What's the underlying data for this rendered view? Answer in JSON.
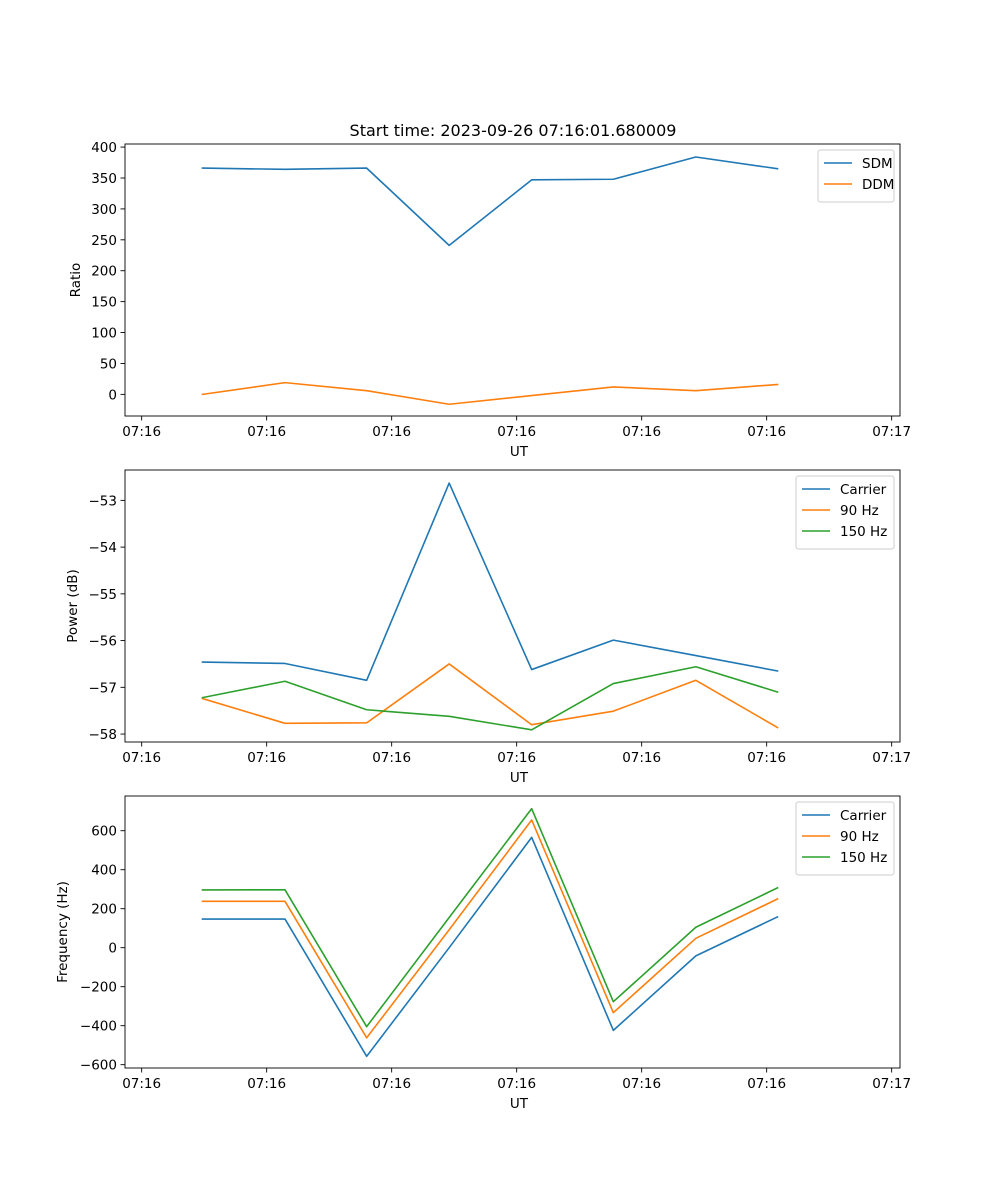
{
  "figure_title": "Start time: 2023-09-26 07:16:01.680009",
  "colors": {
    "blue": "#1f77b4",
    "orange": "#ff7f0e",
    "green": "#2ca02c",
    "axis": "#000000",
    "legend_border": "#cccccc"
  },
  "chart_data": [
    {
      "type": "line",
      "title": "Start time: 2023-09-26 07:16:01.680009",
      "xlabel": "UT",
      "ylabel": "Ratio",
      "xlim": [
        0,
        9.3
      ],
      "x_ticks": [
        0.2,
        1.7,
        3.2,
        4.7,
        6.2,
        7.7,
        9.2
      ],
      "x_tick_labels": [
        "07:16",
        "07:16",
        "07:16",
        "07:16",
        "07:16",
        "07:16",
        "07:17"
      ],
      "ylim": [
        -35,
        405
      ],
      "y_ticks": [
        0,
        50,
        100,
        150,
        200,
        250,
        300,
        350,
        400
      ],
      "y_tick_labels": [
        "0",
        "50",
        "100",
        "150",
        "200",
        "250",
        "300",
        "350",
        "400"
      ],
      "x": [
        0.93,
        1.92,
        2.9,
        3.89,
        4.88,
        5.86,
        6.85,
        7.83
      ],
      "series": [
        {
          "name": "SDM",
          "color": "#1f77b4",
          "values": [
            366,
            364,
            366,
            241,
            347,
            348,
            384,
            365
          ]
        },
        {
          "name": "DDM",
          "color": "#ff7f0e",
          "values": [
            0,
            19,
            6,
            -16,
            -2,
            12,
            6,
            16
          ]
        }
      ],
      "legend": "upper right",
      "legend_width": 76
    },
    {
      "type": "line",
      "title": "",
      "xlabel": "UT",
      "ylabel": "Power (dB)",
      "xlim": [
        0,
        9.3
      ],
      "x_ticks": [
        0.2,
        1.7,
        3.2,
        4.7,
        6.2,
        7.7,
        9.2
      ],
      "x_tick_labels": [
        "07:16",
        "07:16",
        "07:16",
        "07:16",
        "07:16",
        "07:16",
        "07:17"
      ],
      "ylim": [
        -58.17,
        -52.35
      ],
      "y_ticks": [
        -58,
        -57,
        -56,
        -55,
        -54,
        -53
      ],
      "y_tick_labels": [
        "−58",
        "−57",
        "−56",
        "−55",
        "−54",
        "−53"
      ],
      "x": [
        0.93,
        1.92,
        2.9,
        3.89,
        4.88,
        5.86,
        6.85,
        7.83
      ],
      "series": [
        {
          "name": "Carrier",
          "color": "#1f77b4",
          "values": [
            -56.46,
            -56.49,
            -56.85,
            -52.63,
            -56.62,
            -55.99,
            -56.32,
            -56.65
          ]
        },
        {
          "name": "90 Hz",
          "color": "#ff7f0e",
          "values": [
            -57.24,
            -57.77,
            -57.76,
            -56.5,
            -57.8,
            -57.51,
            -56.85,
            -57.86
          ]
        },
        {
          "name": "150 Hz",
          "color": "#2ca02c",
          "values": [
            -57.22,
            -56.87,
            -57.48,
            -57.62,
            -57.91,
            -56.92,
            -56.56,
            -57.1
          ]
        }
      ],
      "legend": "upper right",
      "legend_width": 98
    },
    {
      "type": "line",
      "title": "",
      "xlabel": "UT",
      "ylabel": "Frequency (Hz)",
      "xlim": [
        0,
        9.3
      ],
      "x_ticks": [
        0.2,
        1.7,
        3.2,
        4.7,
        6.2,
        7.7,
        9.2
      ],
      "x_tick_labels": [
        "07:16",
        "07:16",
        "07:16",
        "07:16",
        "07:16",
        "07:16",
        "07:17"
      ],
      "ylim": [
        -617,
        778
      ],
      "y_ticks": [
        -600,
        -400,
        -200,
        0,
        200,
        400,
        600
      ],
      "y_tick_labels": [
        "−600",
        "−400",
        "−200",
        "0",
        "200",
        "400",
        "600"
      ],
      "x": [
        0.93,
        1.92,
        2.9,
        3.89,
        4.88,
        5.86,
        6.85,
        7.83
      ],
      "series": [
        {
          "name": "Carrier",
          "color": "#1f77b4",
          "values": [
            147,
            147,
            -557,
            0,
            566,
            -424,
            -42,
            158
          ]
        },
        {
          "name": "90 Hz",
          "color": "#ff7f0e",
          "values": [
            238,
            238,
            -462,
            92,
            655,
            -333,
            48,
            250
          ]
        },
        {
          "name": "150 Hz",
          "color": "#2ca02c",
          "values": [
            296,
            297,
            -405,
            155,
            713,
            -277,
            105,
            307
          ]
        }
      ],
      "legend": "upper right",
      "legend_width": 98
    }
  ]
}
